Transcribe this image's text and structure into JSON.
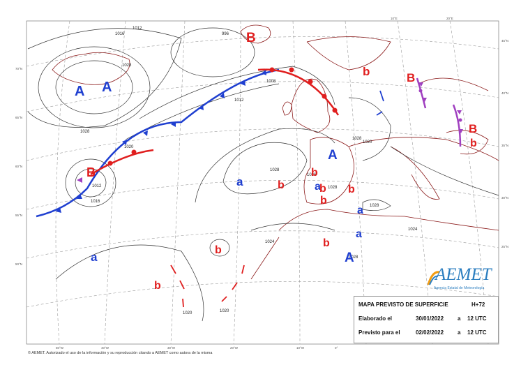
{
  "map": {
    "high_labels": [
      {
        "text": "A",
        "type": "high"
      },
      {
        "text": "A",
        "type": "high"
      },
      {
        "text": "A",
        "type": "high"
      },
      {
        "text": "A",
        "type": "high"
      },
      {
        "text": "a",
        "type": "high"
      },
      {
        "text": "a",
        "type": "high"
      },
      {
        "text": "a",
        "type": "high"
      },
      {
        "text": "a",
        "type": "high"
      },
      {
        "text": "a",
        "type": "high"
      }
    ],
    "low_labels": [
      {
        "text": "B",
        "type": "low"
      },
      {
        "text": "b",
        "type": "low"
      },
      {
        "text": "B",
        "type": "low"
      },
      {
        "text": "B",
        "type": "low"
      },
      {
        "text": "b",
        "type": "low"
      },
      {
        "text": "B",
        "type": "low"
      },
      {
        "text": "b",
        "type": "low"
      },
      {
        "text": "b",
        "type": "low"
      },
      {
        "text": "b",
        "type": "low"
      },
      {
        "text": "b",
        "type": "low"
      },
      {
        "text": "b",
        "type": "low"
      },
      {
        "text": "b",
        "type": "low"
      },
      {
        "text": "b",
        "type": "low"
      },
      {
        "text": "b",
        "type": "low"
      }
    ],
    "isobar_values": [
      "1012",
      "1016",
      "1028",
      "1028",
      "996",
      "1008",
      "1012",
      "1020",
      "1028",
      "1026",
      "1028",
      "1024",
      "1024",
      "1028",
      "1028",
      "1020",
      "1012",
      "1016",
      "1028",
      "1020",
      "1020"
    ],
    "lat_ticks": [
      "70°N",
      "65°N",
      "60°N",
      "55°N",
      "50°N",
      "45°N",
      "40°N",
      "35°N",
      "30°N",
      "25°N"
    ],
    "lon_ticks": [
      "50°W",
      "40°W",
      "30°W",
      "20°W",
      "10°W",
      "0°",
      "10°E",
      "20°E"
    ],
    "colors": {
      "high": "#1f3fd0",
      "low": "#e01e1e",
      "warm_front": "#e01e1e",
      "cold_front": "#1f3fd0",
      "occluded_front": "#a040c0",
      "coast": "#8b1a1a",
      "grid": "#9a9a9a",
      "isobar": "#333333"
    }
  },
  "info_box": {
    "title": "MAPA PREVISTO DE SUPERFICIE",
    "forecast_hour": "H+72",
    "elaborated_label": "Elaborado el",
    "elaborated_date": "30/01/2022",
    "elaborated_a": "a",
    "elaborated_time": "12 UTC",
    "valid_label": "Previsto para el",
    "valid_date": "02/02/2022",
    "valid_a": "a",
    "valid_time": "12 UTC"
  },
  "logo": {
    "name": "AEMET",
    "subtitle": "Agencia Estatal de Meteorología"
  },
  "footer": {
    "copyright": "© AEMET. Autorizado el uso de la información y su reproducción citando a AEMET como autora de la misma"
  }
}
